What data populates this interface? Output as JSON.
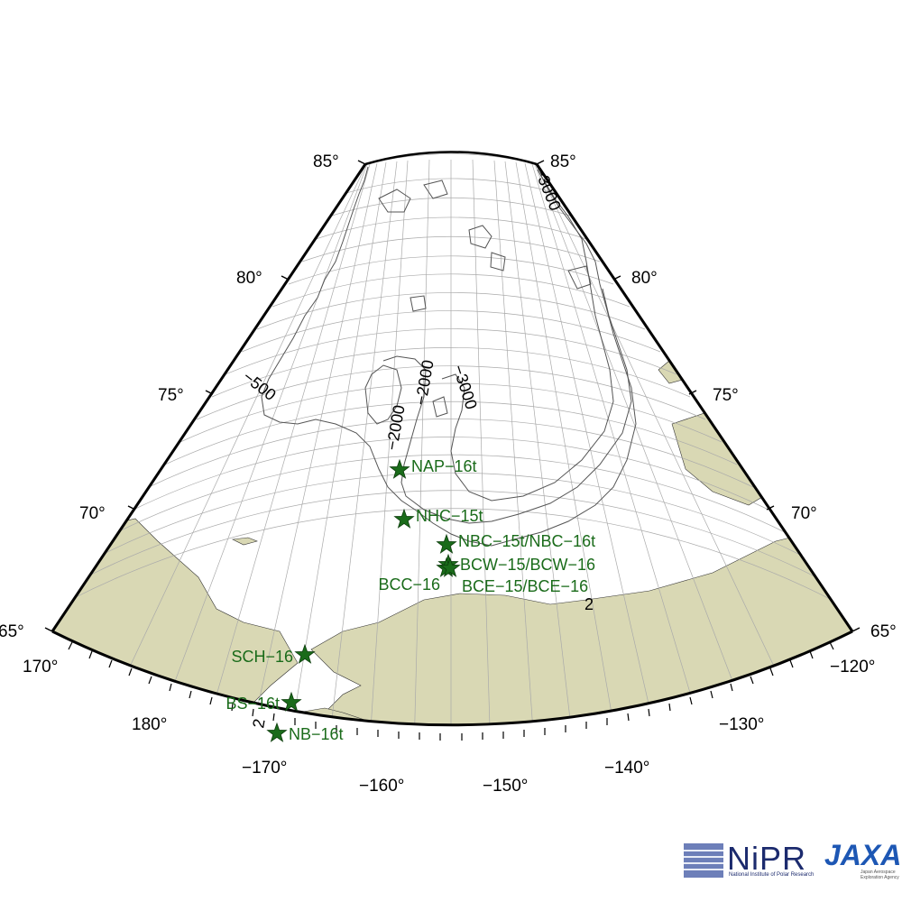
{
  "map": {
    "lat_labels": [
      "85°",
      "80°",
      "75°",
      "70°",
      "65°"
    ],
    "lon_labels": [
      "170°",
      "180°",
      "−170°",
      "−160°",
      "−150°",
      "−140°",
      "−130°",
      "−120°"
    ],
    "contour_labels": [
      "−500",
      "−2000",
      "−2000",
      "−3000",
      "−3000",
      "2",
      "2"
    ],
    "colors": {
      "land": "#d9d8b4",
      "marker": "#1a6b1a",
      "grid": "#aaaaaa",
      "contour": "#555555"
    }
  },
  "stations": [
    {
      "name": "NAP−16t",
      "lat": 75.0,
      "lon": -168.0
    },
    {
      "name": "NHC−15t",
      "lat": 73.0,
      "lon": -166.0
    },
    {
      "name": "NBC−15t/NBC−16t",
      "lat": 72.5,
      "lon": -159.0
    },
    {
      "name": "BCW−15/BCW−16",
      "lat": 71.8,
      "lon": -159.0
    },
    {
      "name": "BCC−16",
      "lat": 71.6,
      "lon": -158.6
    },
    {
      "name": "BCE−15/BCE−16",
      "lat": 71.5,
      "lon": -158.2
    },
    {
      "name": "SCH−16",
      "lat": 67.7,
      "lon": -168.6
    },
    {
      "name": "BS−16t",
      "lat": 65.8,
      "lon": -168.9
    },
    {
      "name": "NB−16t",
      "lat": 64.6,
      "lon": -168.2
    }
  ],
  "logos": {
    "nipr": "NiPR",
    "nipr_sub": "National Institute of Polar Research",
    "jaxa": "JAXA",
    "jaxa_sub": "Japan Aerospace Exploration Agency"
  }
}
